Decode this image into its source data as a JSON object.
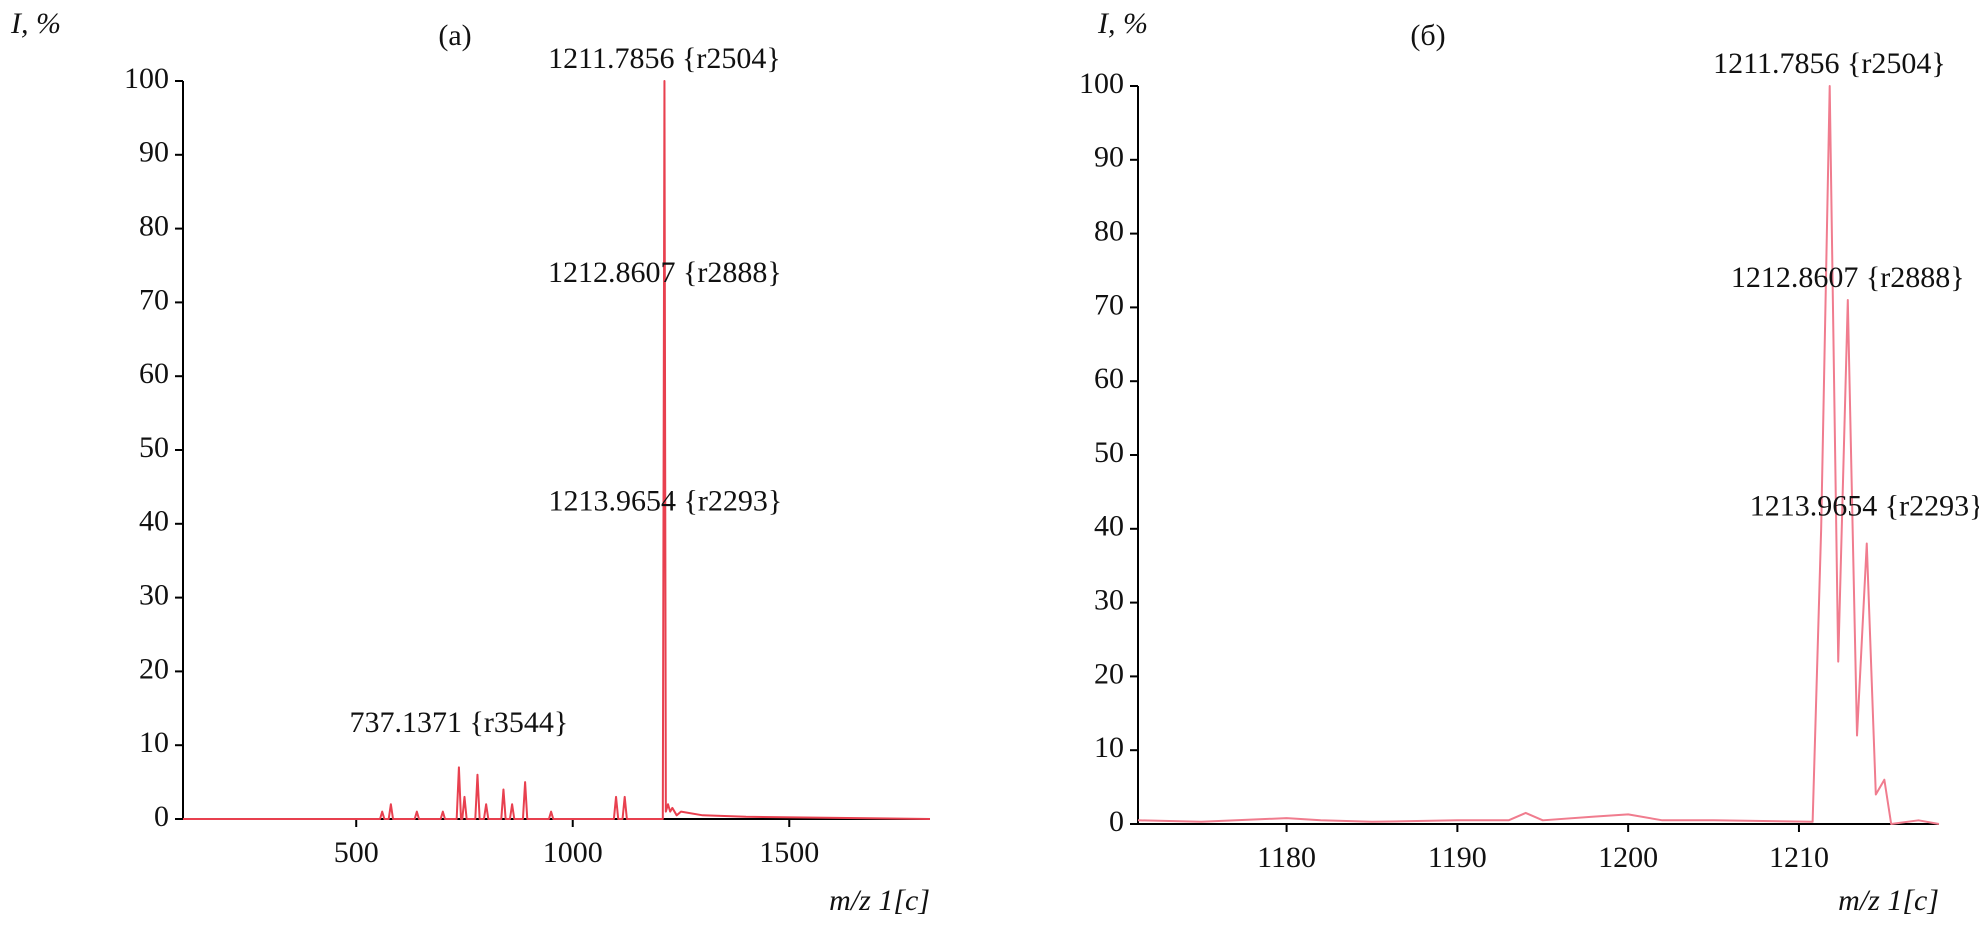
{
  "chart_data": [
    {
      "type": "line",
      "title": "(a)",
      "ylabel": "I, %",
      "xlabel": "m/z 1[c]",
      "color": "#e8404f",
      "xlim": [
        100,
        1825
      ],
      "ylim": [
        0,
        100
      ],
      "xticks": [
        500,
        1000,
        1500
      ],
      "yticks": [
        0,
        10,
        20,
        30,
        40,
        50,
        60,
        70,
        80,
        90,
        100
      ],
      "x": [
        100,
        555,
        560,
        565,
        575,
        580,
        585,
        635,
        640,
        645,
        695,
        700,
        705,
        732,
        737.1371,
        742,
        745,
        750,
        755,
        775,
        780,
        785,
        795,
        800,
        805,
        835,
        840,
        845,
        855,
        860,
        865,
        885,
        890,
        895,
        945,
        950,
        955,
        1095,
        1100,
        1105,
        1115,
        1120,
        1125,
        1208,
        1211.7856,
        1215,
        1220,
        1225,
        1230,
        1240,
        1250,
        1300,
        1400,
        1825
      ],
      "values": [
        0,
        0,
        1,
        0,
        0,
        2,
        0,
        0,
        1,
        0,
        0,
        1,
        0,
        0,
        7,
        0,
        0,
        3,
        0,
        0,
        6,
        0,
        0,
        2,
        0,
        0,
        4,
        0,
        0,
        2,
        0,
        0,
        5,
        0,
        0,
        1,
        0,
        0,
        3,
        0,
        0,
        3,
        0,
        0,
        100,
        1,
        2,
        1,
        1.5,
        0.5,
        1,
        0.5,
        0.3,
        0
      ],
      "annotations": [
        {
          "text": "1211.7856 {r2504}",
          "x": 1211.7856,
          "y": 100
        },
        {
          "text": "1212.8607 {r2888}",
          "x": 1212.8607,
          "y": 71
        },
        {
          "text": "1213.9654 {r2293}",
          "x": 1213.9654,
          "y": 40
        },
        {
          "text": "737.1371 {r3544}",
          "x": 737.1371,
          "y": 10
        }
      ]
    },
    {
      "type": "line",
      "title": "(б)",
      "ylabel": "I, %",
      "xlabel": "m/z 1[c]",
      "color": "#f07c8e",
      "xlim": [
        1171.3,
        1218.2
      ],
      "ylim": [
        0,
        100
      ],
      "xticks": [
        1180,
        1190,
        1200,
        1210
      ],
      "yticks": [
        0,
        10,
        20,
        30,
        40,
        50,
        60,
        70,
        80,
        90,
        100
      ],
      "x": [
        1171.3,
        1175,
        1180,
        1182,
        1185,
        1190,
        1193,
        1194,
        1195,
        1198,
        1200,
        1202,
        1205,
        1210.8,
        1211.3,
        1211.8,
        1212.3,
        1212.86,
        1213.4,
        1213.97,
        1214.5,
        1215,
        1215.4,
        1217,
        1218.2
      ],
      "values": [
        0.5,
        0.3,
        0.8,
        0.5,
        0.3,
        0.5,
        0.5,
        1.5,
        0.5,
        1,
        1.3,
        0.5,
        0.5,
        0.3,
        40,
        100,
        22,
        71,
        12,
        38,
        4,
        6,
        0,
        0.5,
        0
      ],
      "annotations": [
        {
          "text": "1211.7856 {r2504}",
          "x": 1211.7856,
          "y": 100
        },
        {
          "text": "1212.8607 {r2888}",
          "x": 1212.8607,
          "y": 71
        },
        {
          "text": "1213.9654 {r2293}",
          "x": 1213.9654,
          "y": 40
        }
      ]
    }
  ]
}
